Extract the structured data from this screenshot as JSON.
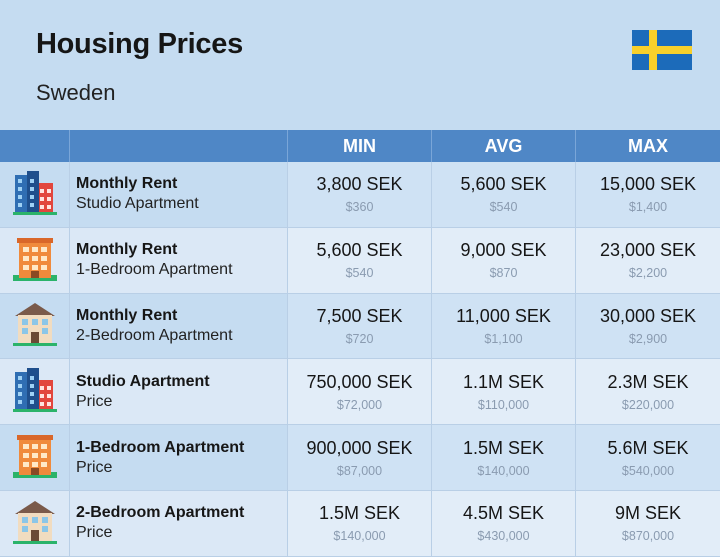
{
  "header": {
    "title": "Housing Prices",
    "subtitle": "Sweden",
    "flag_icon": "sweden-flag-icon",
    "flag_colors": {
      "blue": "#1c6bba",
      "yellow": "#f9d02a"
    }
  },
  "columns": {
    "min": "MIN",
    "avg": "AVG",
    "max": "MAX"
  },
  "colors": {
    "header_bar": "#4f87c6",
    "background": "#c5dcf1"
  },
  "chart_data": {
    "type": "table",
    "title": "Housing Prices",
    "subtitle": "Sweden",
    "columns": [
      "MIN",
      "AVG",
      "MAX"
    ],
    "rows": [
      {
        "icon": "blue-building-icon",
        "title": "Monthly Rent",
        "subtitle": "Studio Apartment",
        "min": "3,800 SEK",
        "min_usd": "$360",
        "avg": "5,600 SEK",
        "avg_usd": "$540",
        "max": "15,000 SEK",
        "max_usd": "$1,400"
      },
      {
        "icon": "orange-building-icon",
        "title": "Monthly Rent",
        "subtitle": "1-Bedroom Apartment",
        "min": "5,600 SEK",
        "min_usd": "$540",
        "avg": "9,000 SEK",
        "avg_usd": "$870",
        "max": "23,000 SEK",
        "max_usd": "$2,200"
      },
      {
        "icon": "house-icon",
        "title": "Monthly Rent",
        "subtitle": "2-Bedroom Apartment",
        "min": "7,500 SEK",
        "min_usd": "$720",
        "avg": "11,000 SEK",
        "avg_usd": "$1,100",
        "max": "30,000 SEK",
        "max_usd": "$2,900"
      },
      {
        "icon": "blue-building-icon",
        "title": "Studio Apartment",
        "subtitle": "Price",
        "min": "750,000 SEK",
        "min_usd": "$72,000",
        "avg": "1.1M SEK",
        "avg_usd": "$110,000",
        "max": "2.3M SEK",
        "max_usd": "$220,000"
      },
      {
        "icon": "orange-building-icon",
        "title": "1-Bedroom Apartment",
        "subtitle": "Price",
        "min": "900,000 SEK",
        "min_usd": "$87,000",
        "avg": "1.5M SEK",
        "avg_usd": "$140,000",
        "max": "5.6M SEK",
        "max_usd": "$540,000"
      },
      {
        "icon": "house-icon",
        "title": "2-Bedroom Apartment",
        "subtitle": "Price",
        "min": "1.5M SEK",
        "min_usd": "$140,000",
        "avg": "4.5M SEK",
        "avg_usd": "$430,000",
        "max": "9M SEK",
        "max_usd": "$870,000"
      }
    ]
  }
}
